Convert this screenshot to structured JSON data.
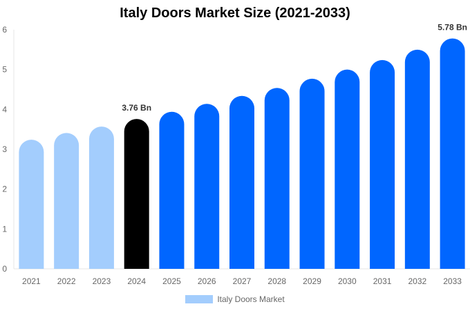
{
  "chart_data": {
    "type": "bar",
    "title": "Italy Doors Market Size (2021-2033)",
    "categories": [
      "2021",
      "2022",
      "2023",
      "2024",
      "2025",
      "2026",
      "2027",
      "2028",
      "2029",
      "2030",
      "2031",
      "2032",
      "2033"
    ],
    "series": [
      {
        "name": "Italy Doors Market",
        "values": [
          3.24,
          3.41,
          3.57,
          3.76,
          3.94,
          4.14,
          4.34,
          4.54,
          4.77,
          5.0,
          5.24,
          5.5,
          5.78
        ]
      }
    ],
    "data_labels": {
      "3": "3.76 Bn",
      "12": "5.78 Bn"
    },
    "ylim": [
      0,
      6
    ],
    "yticks": [
      "0",
      "1",
      "2",
      "3",
      "4",
      "5",
      "6"
    ],
    "xlabel": "",
    "ylabel": "",
    "grid": false,
    "legend": "bottom",
    "colors": {
      "historical": "#a3cdfd",
      "current": "#000000",
      "forecast": "#0066ff",
      "legend": "#a3cdfd"
    }
  }
}
